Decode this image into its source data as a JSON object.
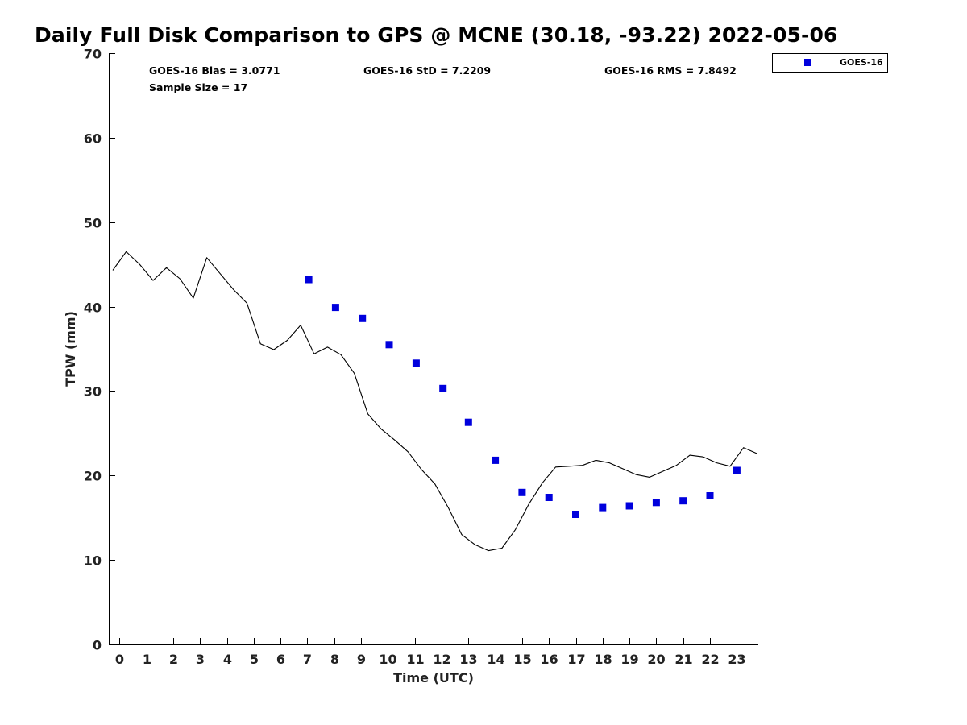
{
  "chart_data": {
    "type": "line+scatter",
    "title": "Daily Full Disk Comparison to GPS @ MCNE (30.18, -93.22) 2022-05-06",
    "xlabel": "Time (UTC)",
    "ylabel": "TPW (mm)",
    "xlim": [
      -0.4,
      23.8
    ],
    "ylim": [
      0,
      70
    ],
    "x_ticks": [
      0,
      1,
      2,
      3,
      4,
      5,
      6,
      7,
      8,
      9,
      10,
      11,
      12,
      13,
      14,
      15,
      16,
      17,
      18,
      19,
      20,
      21,
      22,
      23
    ],
    "y_ticks": [
      0,
      10,
      20,
      30,
      40,
      50,
      60,
      70
    ],
    "grid": false,
    "legend_placement": "top-right outside",
    "stats": [
      {
        "text": "GOES-16 Bias = 3.0771"
      },
      {
        "text": "GOES-16 StD = 7.2209"
      },
      {
        "text": "GOES-16 RMS = 7.8492"
      },
      {
        "text": "Sample Size = 17"
      }
    ],
    "gps_line": {
      "color": "#000000",
      "points": [
        [
          -0.25,
          44.3
        ],
        [
          0.25,
          46.5
        ],
        [
          0.75,
          45.0
        ],
        [
          1.25,
          43.1
        ],
        [
          1.75,
          44.6
        ],
        [
          2.25,
          43.3
        ],
        [
          2.75,
          41.0
        ],
        [
          3.25,
          45.8
        ],
        [
          3.75,
          43.9
        ],
        [
          4.25,
          42.0
        ],
        [
          4.75,
          40.4
        ],
        [
          5.25,
          35.6
        ],
        [
          5.75,
          34.9
        ],
        [
          6.25,
          36.0
        ],
        [
          6.75,
          37.8
        ],
        [
          7.25,
          34.4
        ],
        [
          7.75,
          35.2
        ],
        [
          8.25,
          34.3
        ],
        [
          8.75,
          32.1
        ],
        [
          9.25,
          27.3
        ],
        [
          9.75,
          25.5
        ],
        [
          10.25,
          24.2
        ],
        [
          10.75,
          22.8
        ],
        [
          11.25,
          20.7
        ],
        [
          11.75,
          19.0
        ],
        [
          12.25,
          16.2
        ],
        [
          12.75,
          13.0
        ],
        [
          13.25,
          11.8
        ],
        [
          13.75,
          11.1
        ],
        [
          14.25,
          11.4
        ],
        [
          14.75,
          13.6
        ],
        [
          15.25,
          16.6
        ],
        [
          15.75,
          19.1
        ],
        [
          16.25,
          21.0
        ],
        [
          16.75,
          21.1
        ],
        [
          17.25,
          21.2
        ],
        [
          17.75,
          21.8
        ],
        [
          18.25,
          21.5
        ],
        [
          18.75,
          20.8
        ],
        [
          19.25,
          20.1
        ],
        [
          19.75,
          19.8
        ],
        [
          20.25,
          20.5
        ],
        [
          20.75,
          21.2
        ],
        [
          21.25,
          22.4
        ],
        [
          21.75,
          22.2
        ],
        [
          22.25,
          21.5
        ],
        [
          22.75,
          21.1
        ],
        [
          23.25,
          23.3
        ],
        [
          23.75,
          22.6
        ]
      ]
    },
    "series": [
      {
        "name": "GOES-16",
        "color": "#0000dd",
        "marker": "square",
        "points": [
          [
            7.05,
            43.2
          ],
          [
            8.05,
            39.9
          ],
          [
            9.05,
            38.6
          ],
          [
            10.05,
            35.5
          ],
          [
            11.05,
            33.3
          ],
          [
            12.05,
            30.3
          ],
          [
            13.0,
            26.3
          ],
          [
            14.0,
            21.8
          ],
          [
            15.0,
            18.0
          ],
          [
            16.0,
            17.4
          ],
          [
            17.0,
            15.4
          ],
          [
            18.0,
            16.2
          ],
          [
            19.0,
            16.4
          ],
          [
            20.0,
            16.8
          ],
          [
            21.0,
            17.0
          ],
          [
            22.0,
            17.6
          ],
          [
            23.0,
            20.6
          ]
        ]
      }
    ]
  }
}
